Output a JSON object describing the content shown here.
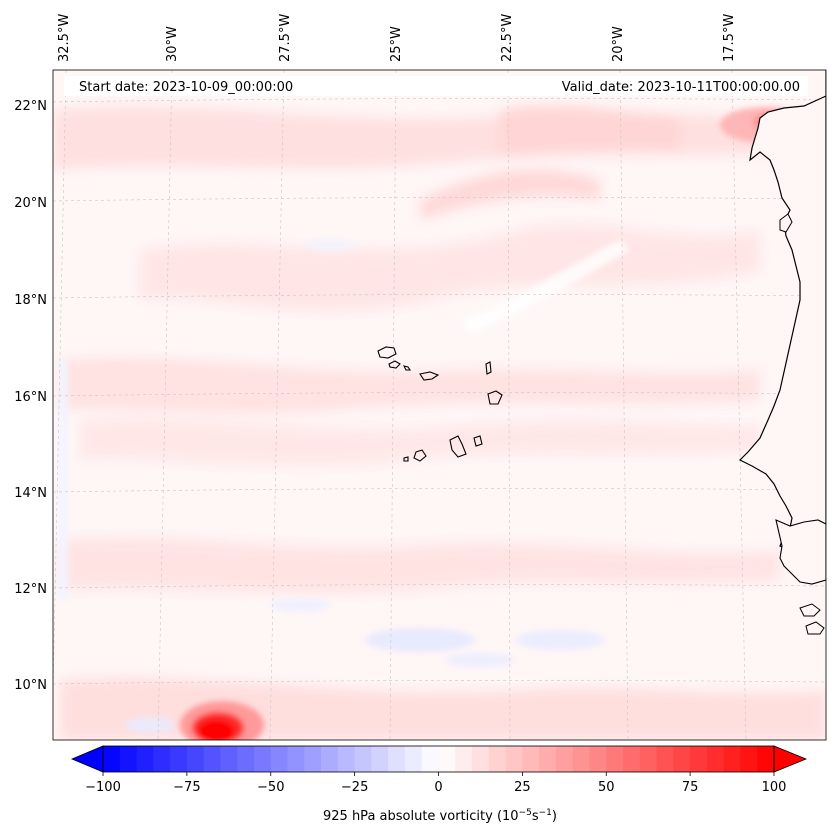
{
  "map": {
    "start_label": "Start date: 2023-10-09_00:00:00",
    "valid_label": "Valid_date: 2023-10-11T00:00:00.00",
    "lon_labels": [
      "32.5°W",
      "30°W",
      "27.5°W",
      "25°W",
      "22.5°W",
      "20°W",
      "17.5°W"
    ],
    "lat_labels": [
      "22°N",
      "20°N",
      "18°N",
      "16°N",
      "14°N",
      "12°N",
      "10°N"
    ],
    "extent": {
      "lon_min": -33.0,
      "lon_max": -15.8,
      "lat_min": 8.9,
      "lat_max": 22.8
    }
  },
  "colorbar": {
    "label": "925 hPa absolute vorticity (10",
    "label_exp1": "−5",
    "label_mid": "s",
    "label_exp2": "−1",
    "label_end": ")",
    "ticks": [
      "−100",
      "−75",
      "−50",
      "−25",
      "0",
      "25",
      "50",
      "75",
      "100"
    ],
    "min": -100,
    "max": 100,
    "neg_color": "#0000ff",
    "pos_color": "#ff0000",
    "extend": "both"
  }
}
